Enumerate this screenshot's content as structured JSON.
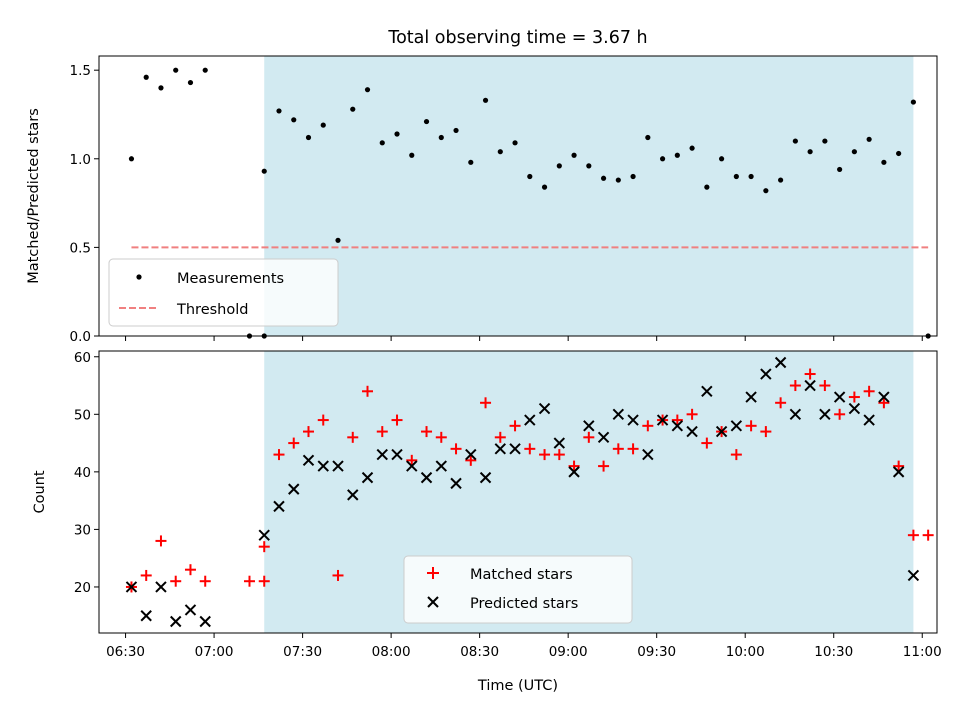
{
  "chart_data": [
    {
      "type": "scatter",
      "title": "Total observing time = 3.67 h",
      "xlabel": "",
      "ylabel": "Matched/Predicted stars",
      "xlim": [
        "06:21",
        "11:05"
      ],
      "ylim": [
        0,
        1.58
      ],
      "yticks": [
        "0.0",
        "0.5",
        "1.0",
        "1.5"
      ],
      "shaded_interval": [
        "07:17",
        "10:57"
      ],
      "shade_color": "#add8e6",
      "threshold": {
        "name": "Threshold",
        "value": 0.5,
        "x_range": [
          "06:32",
          "11:02"
        ],
        "color": "#f08080"
      },
      "series": [
        {
          "name": "Measurements",
          "color": "#000000",
          "points": [
            [
              "06:32",
              1.0
            ],
            [
              "06:37",
              1.46
            ],
            [
              "06:42",
              1.4
            ],
            [
              "06:47",
              1.5
            ],
            [
              "06:52",
              1.43
            ],
            [
              "06:57",
              1.5
            ],
            [
              "07:12",
              0.0
            ],
            [
              "07:17",
              0.0
            ],
            [
              "07:17",
              0.93
            ],
            [
              "07:22",
              1.27
            ],
            [
              "07:27",
              1.22
            ],
            [
              "07:32",
              1.12
            ],
            [
              "07:37",
              1.19
            ],
            [
              "07:42",
              0.54
            ],
            [
              "07:47",
              1.28
            ],
            [
              "07:52",
              1.39
            ],
            [
              "07:57",
              1.09
            ],
            [
              "08:02",
              1.14
            ],
            [
              "08:07",
              1.02
            ],
            [
              "08:12",
              1.21
            ],
            [
              "08:17",
              1.12
            ],
            [
              "08:22",
              1.16
            ],
            [
              "08:27",
              0.98
            ],
            [
              "08:32",
              1.33
            ],
            [
              "08:37",
              1.04
            ],
            [
              "08:42",
              1.09
            ],
            [
              "08:47",
              0.9
            ],
            [
              "08:52",
              0.84
            ],
            [
              "08:57",
              0.96
            ],
            [
              "09:02",
              1.02
            ],
            [
              "09:07",
              0.96
            ],
            [
              "09:12",
              0.89
            ],
            [
              "09:17",
              0.88
            ],
            [
              "09:22",
              0.9
            ],
            [
              "09:27",
              1.12
            ],
            [
              "09:32",
              1.0
            ],
            [
              "09:37",
              1.02
            ],
            [
              "09:42",
              1.06
            ],
            [
              "09:47",
              0.84
            ],
            [
              "09:52",
              1.0
            ],
            [
              "09:57",
              0.9
            ],
            [
              "10:02",
              0.9
            ],
            [
              "10:07",
              0.82
            ],
            [
              "10:12",
              0.88
            ],
            [
              "10:17",
              1.1
            ],
            [
              "10:22",
              1.04
            ],
            [
              "10:27",
              1.1
            ],
            [
              "10:32",
              0.94
            ],
            [
              "10:37",
              1.04
            ],
            [
              "10:42",
              1.11
            ],
            [
              "10:47",
              0.98
            ],
            [
              "10:52",
              1.03
            ],
            [
              "10:57",
              1.32
            ],
            [
              "11:02",
              0.0
            ]
          ]
        }
      ],
      "legend": {
        "placement": "lower-left",
        "entries": [
          "Measurements",
          "Threshold"
        ]
      }
    },
    {
      "type": "scatter",
      "title": "",
      "xlabel": "Time (UTC)",
      "ylabel": "Count",
      "xlim": [
        "06:21",
        "11:05"
      ],
      "ylim": [
        12,
        61
      ],
      "yticks": [
        "20",
        "30",
        "40",
        "50",
        "60"
      ],
      "xticks": [
        "06:30",
        "07:00",
        "07:30",
        "08:00",
        "08:30",
        "09:00",
        "09:30",
        "10:00",
        "10:30",
        "11:00"
      ],
      "shaded_interval": [
        "07:17",
        "10:57"
      ],
      "shade_color": "#add8e6",
      "series": [
        {
          "name": "Matched stars",
          "marker": "plus",
          "color": "#ff0000",
          "points": [
            [
              "06:32",
              20
            ],
            [
              "06:37",
              22
            ],
            [
              "06:42",
              28
            ],
            [
              "06:47",
              21
            ],
            [
              "06:52",
              23
            ],
            [
              "06:57",
              21
            ],
            [
              "07:12",
              21
            ],
            [
              "07:17",
              21
            ],
            [
              "07:17",
              27
            ],
            [
              "07:22",
              43
            ],
            [
              "07:27",
              45
            ],
            [
              "07:32",
              47
            ],
            [
              "07:37",
              49
            ],
            [
              "07:42",
              22
            ],
            [
              "07:47",
              46
            ],
            [
              "07:52",
              54
            ],
            [
              "07:57",
              47
            ],
            [
              "08:02",
              49
            ],
            [
              "08:07",
              42
            ],
            [
              "08:12",
              47
            ],
            [
              "08:17",
              46
            ],
            [
              "08:22",
              44
            ],
            [
              "08:27",
              42
            ],
            [
              "08:32",
              52
            ],
            [
              "08:37",
              46
            ],
            [
              "08:42",
              48
            ],
            [
              "08:47",
              44
            ],
            [
              "08:52",
              43
            ],
            [
              "08:57",
              43
            ],
            [
              "09:02",
              41
            ],
            [
              "09:07",
              46
            ],
            [
              "09:12",
              41
            ],
            [
              "09:17",
              44
            ],
            [
              "09:22",
              44
            ],
            [
              "09:27",
              48
            ],
            [
              "09:32",
              49
            ],
            [
              "09:37",
              49
            ],
            [
              "09:42",
              50
            ],
            [
              "09:47",
              45
            ],
            [
              "09:52",
              47
            ],
            [
              "09:57",
              43
            ],
            [
              "10:02",
              48
            ],
            [
              "10:07",
              47
            ],
            [
              "10:12",
              52
            ],
            [
              "10:17",
              55
            ],
            [
              "10:22",
              57
            ],
            [
              "10:27",
              55
            ],
            [
              "10:32",
              50
            ],
            [
              "10:37",
              53
            ],
            [
              "10:42",
              54
            ],
            [
              "10:47",
              52
            ],
            [
              "10:52",
              41
            ],
            [
              "10:57",
              29
            ],
            [
              "11:02",
              29
            ]
          ]
        },
        {
          "name": "Predicted stars",
          "marker": "x",
          "color": "#000000",
          "points": [
            [
              "06:32",
              20
            ],
            [
              "06:37",
              15
            ],
            [
              "06:42",
              20
            ],
            [
              "06:47",
              14
            ],
            [
              "06:52",
              16
            ],
            [
              "06:57",
              14
            ],
            [
              "07:17",
              29
            ],
            [
              "07:22",
              34
            ],
            [
              "07:27",
              37
            ],
            [
              "07:32",
              42
            ],
            [
              "07:37",
              41
            ],
            [
              "07:42",
              41
            ],
            [
              "07:47",
              36
            ],
            [
              "07:52",
              39
            ],
            [
              "07:57",
              43
            ],
            [
              "08:02",
              43
            ],
            [
              "08:07",
              41
            ],
            [
              "08:12",
              39
            ],
            [
              "08:17",
              41
            ],
            [
              "08:22",
              38
            ],
            [
              "08:27",
              43
            ],
            [
              "08:32",
              39
            ],
            [
              "08:37",
              44
            ],
            [
              "08:42",
              44
            ],
            [
              "08:47",
              49
            ],
            [
              "08:52",
              51
            ],
            [
              "08:57",
              45
            ],
            [
              "09:02",
              40
            ],
            [
              "09:07",
              48
            ],
            [
              "09:12",
              46
            ],
            [
              "09:17",
              50
            ],
            [
              "09:22",
              49
            ],
            [
              "09:27",
              43
            ],
            [
              "09:32",
              49
            ],
            [
              "09:37",
              48
            ],
            [
              "09:42",
              47
            ],
            [
              "09:47",
              54
            ],
            [
              "09:52",
              47
            ],
            [
              "09:57",
              48
            ],
            [
              "10:02",
              53
            ],
            [
              "10:07",
              57
            ],
            [
              "10:12",
              59
            ],
            [
              "10:17",
              50
            ],
            [
              "10:22",
              55
            ],
            [
              "10:27",
              50
            ],
            [
              "10:32",
              53
            ],
            [
              "10:37",
              51
            ],
            [
              "10:42",
              49
            ],
            [
              "10:47",
              53
            ],
            [
              "10:52",
              40
            ],
            [
              "10:57",
              22
            ]
          ]
        }
      ],
      "legend": {
        "placement": "lower-center",
        "entries": [
          "Matched stars",
          "Predicted stars"
        ]
      }
    }
  ]
}
